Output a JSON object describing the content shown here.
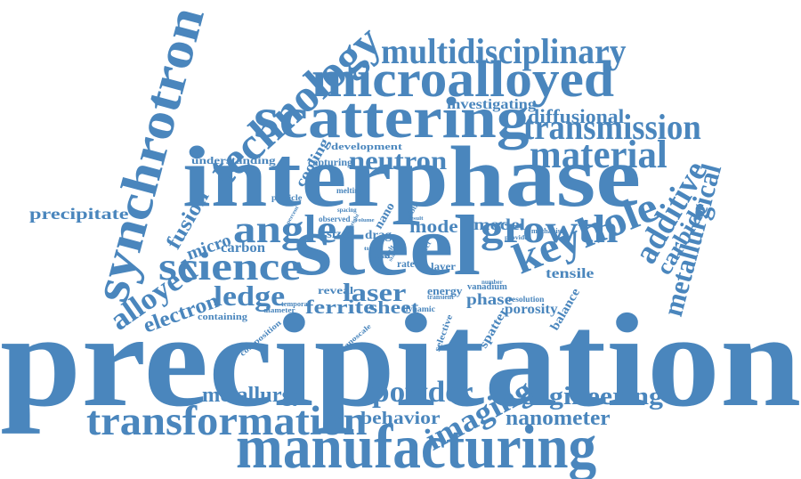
{
  "color": "#4a86bd",
  "words": [
    {
      "id": "precipitation-large",
      "text": "precipitation"
    },
    {
      "id": "interphase",
      "text": "interphase"
    },
    {
      "id": "steel",
      "text": "steel"
    },
    {
      "id": "manufacturing",
      "text": "manufacturing"
    },
    {
      "id": "scattering",
      "text": "scattering"
    },
    {
      "id": "microalloyed",
      "text": "microalloyed"
    },
    {
      "id": "synchrotron",
      "text": "synchrotron"
    },
    {
      "id": "technology",
      "text": "technology"
    },
    {
      "id": "transformation",
      "text": "transformation"
    },
    {
      "id": "multidisciplinary",
      "text": "multidisciplinary"
    },
    {
      "id": "transmission",
      "text": "transmission"
    },
    {
      "id": "growth",
      "text": "growth"
    },
    {
      "id": "keyhole",
      "text": "keyhole"
    },
    {
      "id": "science",
      "text": "science"
    },
    {
      "id": "angle",
      "text": "angle"
    },
    {
      "id": "material",
      "text": "material"
    },
    {
      "id": "additive",
      "text": "additive"
    },
    {
      "id": "metallurgical",
      "text": "metallurgical"
    },
    {
      "id": "imaging",
      "text": "imaging"
    },
    {
      "id": "powder",
      "text": "powder"
    },
    {
      "id": "neutron",
      "text": "neutron"
    },
    {
      "id": "engineering",
      "text": "engineering"
    },
    {
      "id": "metallurgy",
      "text": "metallurgy"
    },
    {
      "id": "nanometer",
      "text": "nanometer"
    },
    {
      "id": "ledge",
      "text": "ledge"
    },
    {
      "id": "laser",
      "text": "laser"
    },
    {
      "id": "ferrite",
      "text": "ferrite"
    },
    {
      "id": "carbide",
      "text": "carbide"
    },
    {
      "id": "alloyed",
      "text": "alloyed"
    },
    {
      "id": "electron",
      "text": "electron"
    },
    {
      "id": "behavior",
      "text": "behavior"
    },
    {
      "id": "mode",
      "text": "mode"
    },
    {
      "id": "model",
      "text": "model"
    },
    {
      "id": "diffusional",
      "text": "diffusional"
    },
    {
      "id": "fusion",
      "text": "fusion"
    },
    {
      "id": "micro",
      "text": "micro"
    },
    {
      "id": "precipitate",
      "text": "precipitate"
    },
    {
      "id": "investigating",
      "text": "investigating"
    },
    {
      "id": "sheet",
      "text": "sheet"
    },
    {
      "id": "phase",
      "text": "phase"
    },
    {
      "id": "porosity",
      "text": "porosity"
    },
    {
      "id": "tensile",
      "text": "tensile"
    },
    {
      "id": "carbon",
      "text": "carbon"
    },
    {
      "id": "cooling",
      "text": "cooling"
    },
    {
      "id": "understanding",
      "text": "understanding"
    },
    {
      "id": "development",
      "text": "development"
    },
    {
      "id": "capturing",
      "text": "capturing"
    },
    {
      "id": "spatter",
      "text": "spatter"
    },
    {
      "id": "balance",
      "text": "balance"
    },
    {
      "id": "nano",
      "text": "nano"
    },
    {
      "id": "drag",
      "text": "drag"
    },
    {
      "id": "sized",
      "text": "sized"
    },
    {
      "id": "reveal",
      "text": "reveal"
    },
    {
      "id": "energy",
      "text": "energy"
    },
    {
      "id": "vanadium",
      "text": "vanadium"
    },
    {
      "id": "rate",
      "text": "rate"
    },
    {
      "id": "layer",
      "text": "layer"
    },
    {
      "id": "dual",
      "text": "dual"
    },
    {
      "id": "observed",
      "text": "observed"
    },
    {
      "id": "particle",
      "text": "particle"
    },
    {
      "id": "melting",
      "text": "melting"
    },
    {
      "id": "containing",
      "text": "containing"
    },
    {
      "id": "diameter",
      "text": "diameter"
    },
    {
      "id": "composition",
      "text": "composition"
    },
    {
      "id": "temporal",
      "text": "temporal"
    },
    {
      "id": "dynamic",
      "text": "dynamic"
    },
    {
      "id": "selective",
      "text": "selective"
    },
    {
      "id": "resolution",
      "text": "resolution"
    },
    {
      "id": "transient",
      "text": "transient"
    },
    {
      "id": "mechanism",
      "text": "mechanism"
    },
    {
      "id": "provide",
      "text": "provide"
    },
    {
      "id": "nanoscale",
      "text": "nanoscale"
    },
    {
      "id": "gibbs",
      "text": "gibbs"
    },
    {
      "id": "melt",
      "text": "melt"
    },
    {
      "id": "effect",
      "text": "effect"
    },
    {
      "id": "spacing",
      "text": "spacing"
    },
    {
      "id": "number",
      "text": "number"
    },
    {
      "id": "volume",
      "text": "volume"
    },
    {
      "id": "result",
      "text": "result"
    },
    {
      "id": "height",
      "text": "height"
    },
    {
      "id": "percent",
      "text": "percent"
    },
    {
      "id": "stage",
      "text": "stage"
    },
    {
      "id": "front",
      "text": "front"
    },
    {
      "id": "time",
      "text": "time"
    }
  ]
}
